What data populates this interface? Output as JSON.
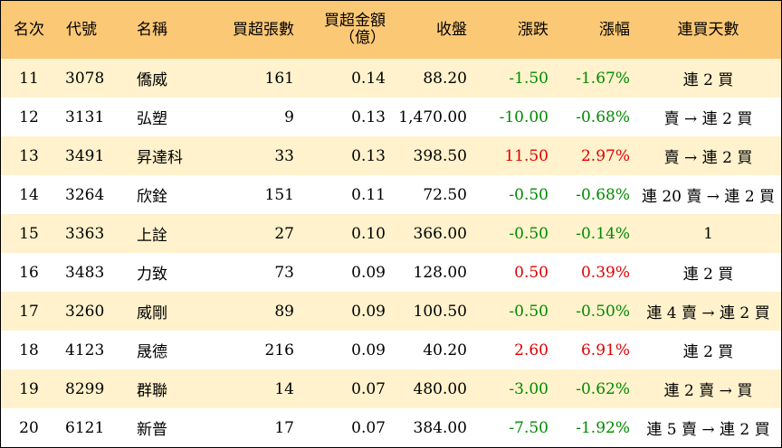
{
  "headers": {
    "rank": "名次",
    "code": "代號",
    "name": "名稱",
    "lots": "買超張數",
    "amount_line1": "買超金額",
    "amount_line2": "（億）",
    "close": "收盤",
    "change": "漲跌",
    "pct": "漲幅",
    "days": "連買天數"
  },
  "colors": {
    "header_bg": "#fbc875",
    "odd_row_bg": "#fff2cc",
    "up": "#e00000",
    "down": "#008a00"
  },
  "rows": [
    {
      "rank": "11",
      "code": "3078",
      "name": "僑威",
      "lots": "161",
      "amount": "0.14",
      "close": "88.20",
      "change": "-1.50",
      "pct": "-1.67%",
      "days": "連 2 買",
      "dir": "down"
    },
    {
      "rank": "12",
      "code": "3131",
      "name": "弘塑",
      "lots": "9",
      "amount": "0.13",
      "close": "1,470.00",
      "change": "-10.00",
      "pct": "-0.68%",
      "days": "賣 → 連 2 買",
      "dir": "down"
    },
    {
      "rank": "13",
      "code": "3491",
      "name": "昇達科",
      "lots": "33",
      "amount": "0.13",
      "close": "398.50",
      "change": "11.50",
      "pct": "2.97%",
      "days": "賣 → 連 2 買",
      "dir": "up"
    },
    {
      "rank": "14",
      "code": "3264",
      "name": "欣銓",
      "lots": "151",
      "amount": "0.11",
      "close": "72.50",
      "change": "-0.50",
      "pct": "-0.68%",
      "days": "連 20 賣 → 連 2 買",
      "dir": "down"
    },
    {
      "rank": "15",
      "code": "3363",
      "name": "上詮",
      "lots": "27",
      "amount": "0.10",
      "close": "366.00",
      "change": "-0.50",
      "pct": "-0.14%",
      "days": "1",
      "dir": "down"
    },
    {
      "rank": "16",
      "code": "3483",
      "name": "力致",
      "lots": "73",
      "amount": "0.09",
      "close": "128.00",
      "change": "0.50",
      "pct": "0.39%",
      "days": "連 2 買",
      "dir": "up"
    },
    {
      "rank": "17",
      "code": "3260",
      "name": "威剛",
      "lots": "89",
      "amount": "0.09",
      "close": "100.50",
      "change": "-0.50",
      "pct": "-0.50%",
      "days": "連 4 賣 → 連 2 買",
      "dir": "down"
    },
    {
      "rank": "18",
      "code": "4123",
      "name": "晟德",
      "lots": "216",
      "amount": "0.09",
      "close": "40.20",
      "change": "2.60",
      "pct": "6.91%",
      "days": "連 2 買",
      "dir": "up"
    },
    {
      "rank": "19",
      "code": "8299",
      "name": "群聯",
      "lots": "14",
      "amount": "0.07",
      "close": "480.00",
      "change": "-3.00",
      "pct": "-0.62%",
      "days": "連 2 賣 → 買",
      "dir": "down"
    },
    {
      "rank": "20",
      "code": "6121",
      "name": "新普",
      "lots": "17",
      "amount": "0.07",
      "close": "384.00",
      "change": "-7.50",
      "pct": "-1.92%",
      "days": "連 5 賣 → 連 2 買",
      "dir": "down"
    }
  ]
}
